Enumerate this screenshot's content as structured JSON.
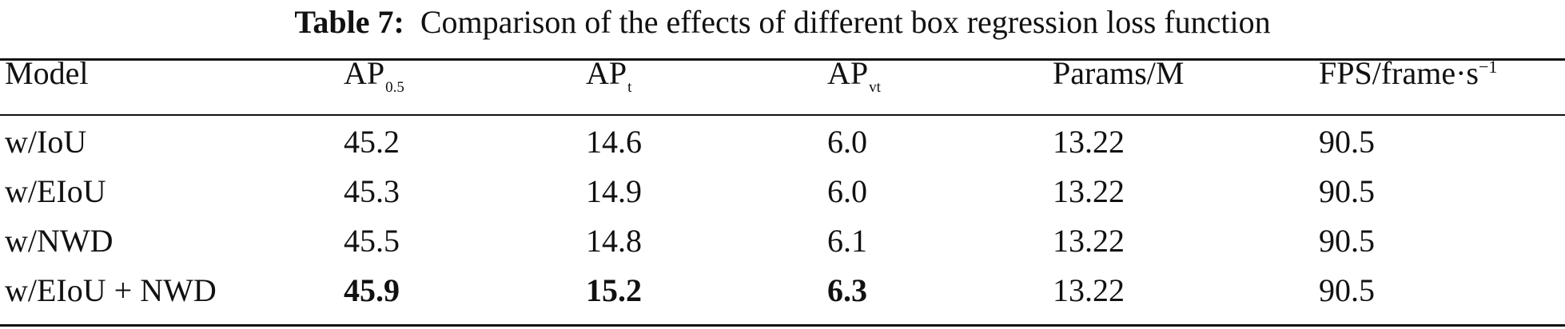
{
  "caption": {
    "label": "Table 7:",
    "text": "Comparison of the effects of different box regression loss function"
  },
  "table": {
    "headers": [
      {
        "base": "Model",
        "sub": "",
        "sup": ""
      },
      {
        "base": "AP",
        "sub": "0.5",
        "sup": ""
      },
      {
        "base": "AP",
        "sub": "t",
        "sup": ""
      },
      {
        "base": "AP",
        "sub": "vt",
        "sup": ""
      },
      {
        "base": "Params/M",
        "sub": "",
        "sup": ""
      },
      {
        "base": "FPS/frame·s",
        "sub": "",
        "sup": "−1"
      }
    ],
    "rows": [
      {
        "cells": [
          "w/IoU",
          "45.2",
          "14.6",
          "6.0",
          "13.22",
          "90.5"
        ],
        "bold": [
          false,
          false,
          false,
          false,
          false,
          false
        ]
      },
      {
        "cells": [
          "w/EIoU",
          "45.3",
          "14.9",
          "6.0",
          "13.22",
          "90.5"
        ],
        "bold": [
          false,
          false,
          false,
          false,
          false,
          false
        ]
      },
      {
        "cells": [
          "w/NWD",
          "45.5",
          "14.8",
          "6.1",
          "13.22",
          "90.5"
        ],
        "bold": [
          false,
          false,
          false,
          false,
          false,
          false
        ]
      },
      {
        "cells": [
          "w/EIoU + NWD",
          "45.9",
          "15.2",
          "6.3",
          "13.22",
          "90.5"
        ],
        "bold": [
          false,
          true,
          true,
          true,
          false,
          false
        ]
      }
    ]
  }
}
